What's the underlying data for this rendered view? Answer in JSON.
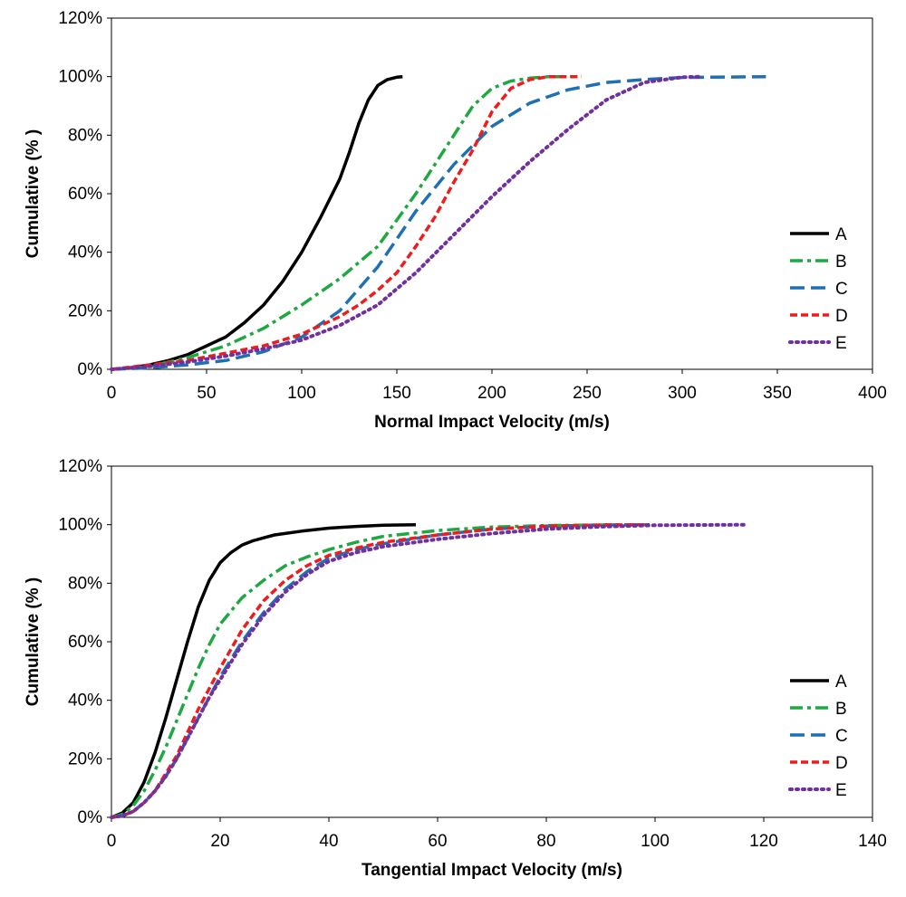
{
  "chart_data": [
    {
      "type": "line",
      "title": "",
      "xlabel": "Normal Impact Velocity (m/s)",
      "ylabel": "Cumulative (% )",
      "xlim": [
        0,
        400
      ],
      "ylim": [
        0,
        120
      ],
      "x_ticks": [
        "0",
        "50",
        "100",
        "150",
        "200",
        "250",
        "300",
        "350",
        "400"
      ],
      "y_ticks": [
        "0%",
        "20%",
        "40%",
        "60%",
        "80%",
        "100%",
        "120%"
      ],
      "legend_position": "right",
      "series": [
        {
          "name": "A",
          "color": "#000000",
          "dash": "solid",
          "x": [
            0,
            10,
            20,
            30,
            40,
            50,
            60,
            70,
            80,
            90,
            100,
            110,
            120,
            125,
            130,
            135,
            140,
            145,
            150,
            153
          ],
          "y": [
            0,
            0.5,
            1.5,
            3,
            5,
            8,
            11,
            16,
            22,
            30,
            40,
            52,
            65,
            74,
            84,
            92,
            97,
            99,
            99.8,
            100
          ]
        },
        {
          "name": "B",
          "color": "#1fa842",
          "dash": "dashdot",
          "x": [
            0,
            20,
            40,
            60,
            80,
            100,
            120,
            140,
            160,
            180,
            190,
            200,
            210,
            220,
            230,
            245
          ],
          "y": [
            0,
            1,
            4,
            8,
            14,
            22,
            31,
            42,
            60,
            80,
            90,
            96,
            98.5,
            99.5,
            100,
            100
          ]
        },
        {
          "name": "C",
          "color": "#1f6fb5",
          "dash": "dash",
          "x": [
            0,
            20,
            40,
            60,
            80,
            100,
            120,
            140,
            160,
            180,
            200,
            220,
            240,
            260,
            280,
            300,
            344
          ],
          "y": [
            0,
            0.5,
            1.5,
            3,
            6,
            11,
            20,
            35,
            54,
            70,
            83,
            91,
            95.5,
            98,
            99,
            99.7,
            100
          ]
        },
        {
          "name": "D",
          "color": "#ee1c1c",
          "dash": "shortdash",
          "x": [
            0,
            20,
            40,
            60,
            80,
            100,
            120,
            130,
            140,
            150,
            160,
            170,
            180,
            190,
            200,
            210,
            220,
            230,
            247
          ],
          "y": [
            0,
            1.5,
            3,
            5.5,
            8,
            12,
            18,
            22,
            27,
            33,
            42,
            52,
            64,
            75,
            88,
            96,
            99,
            100,
            100
          ]
        },
        {
          "name": "E",
          "color": "#7030a0",
          "dash": "dot",
          "x": [
            0,
            20,
            40,
            60,
            80,
            100,
            120,
            140,
            160,
            180,
            200,
            220,
            240,
            260,
            280,
            300,
            310
          ],
          "y": [
            0,
            1,
            2.5,
            4.5,
            7,
            10,
            15,
            22,
            33,
            46,
            59,
            71,
            82,
            92,
            98,
            99.8,
            100
          ]
        }
      ]
    },
    {
      "type": "line",
      "title": "",
      "xlabel": "Tangential Impact Velocity (m/s)",
      "ylabel": "Cumulative (% )",
      "xlim": [
        0,
        140
      ],
      "ylim": [
        0,
        120
      ],
      "x_ticks": [
        "0",
        "20",
        "40",
        "60",
        "80",
        "100",
        "120",
        "140"
      ],
      "y_ticks": [
        "0%",
        "20%",
        "40%",
        "60%",
        "80%",
        "100%",
        "120%"
      ],
      "legend_position": "right",
      "series": [
        {
          "name": "A",
          "color": "#000000",
          "dash": "solid",
          "x": [
            0,
            2,
            4,
            6,
            8,
            10,
            12,
            14,
            16,
            18,
            20,
            22,
            24,
            26,
            28,
            30,
            35,
            40,
            45,
            50,
            56
          ],
          "y": [
            0,
            1.5,
            5,
            12,
            22,
            34,
            47,
            60,
            72,
            81,
            87,
            90.5,
            93,
            94.5,
            95.5,
            96.5,
            97.8,
            98.8,
            99.4,
            99.8,
            100
          ]
        },
        {
          "name": "B",
          "color": "#1fa842",
          "dash": "dashdot",
          "x": [
            0,
            2,
            4,
            6,
            8,
            10,
            12,
            14,
            16,
            18,
            20,
            24,
            28,
            32,
            36,
            40,
            45,
            50,
            60,
            70,
            80,
            90,
            99
          ],
          "y": [
            0,
            1,
            4,
            9,
            16,
            24,
            33,
            42,
            51,
            59,
            66,
            75,
            81,
            86,
            89,
            91.5,
            94,
            96,
            98,
            99.2,
            99.7,
            99.9,
            100
          ]
        },
        {
          "name": "C",
          "color": "#1f6fb5",
          "dash": "dash",
          "x": [
            0,
            2,
            4,
            6,
            8,
            10,
            12,
            14,
            16,
            18,
            20,
            24,
            28,
            32,
            36,
            40,
            45,
            50,
            60,
            70,
            80,
            90,
            99
          ],
          "y": [
            0,
            0.5,
            2,
            5,
            9,
            14,
            20,
            27,
            34,
            41,
            48,
            60,
            70,
            78,
            84,
            88.5,
            91.5,
            93.5,
            96.5,
            98.5,
            99.5,
            99.9,
            100
          ]
        },
        {
          "name": "D",
          "color": "#ee1c1c",
          "dash": "shortdash",
          "x": [
            0,
            2,
            4,
            6,
            8,
            10,
            12,
            14,
            16,
            18,
            20,
            24,
            28,
            32,
            36,
            40,
            45,
            50,
            60,
            70,
            80,
            90,
            99
          ],
          "y": [
            0,
            0.5,
            2,
            5,
            9,
            15,
            21,
            29,
            37,
            44,
            51,
            64,
            74,
            81,
            86,
            89.5,
            92,
            94,
            96.5,
            98.5,
            99.5,
            99.9,
            100
          ]
        },
        {
          "name": "E",
          "color": "#7030a0",
          "dash": "dot",
          "x": [
            0,
            2,
            4,
            6,
            8,
            10,
            12,
            14,
            16,
            18,
            20,
            24,
            28,
            32,
            36,
            40,
            45,
            50,
            60,
            70,
            80,
            90,
            100,
            117
          ],
          "y": [
            0,
            0.5,
            2,
            5,
            9,
            14,
            20,
            27,
            34,
            41,
            47,
            59,
            69,
            77,
            83,
            87.5,
            90.5,
            92.5,
            95,
            97,
            98.5,
            99.3,
            99.8,
            100
          ]
        }
      ]
    }
  ]
}
